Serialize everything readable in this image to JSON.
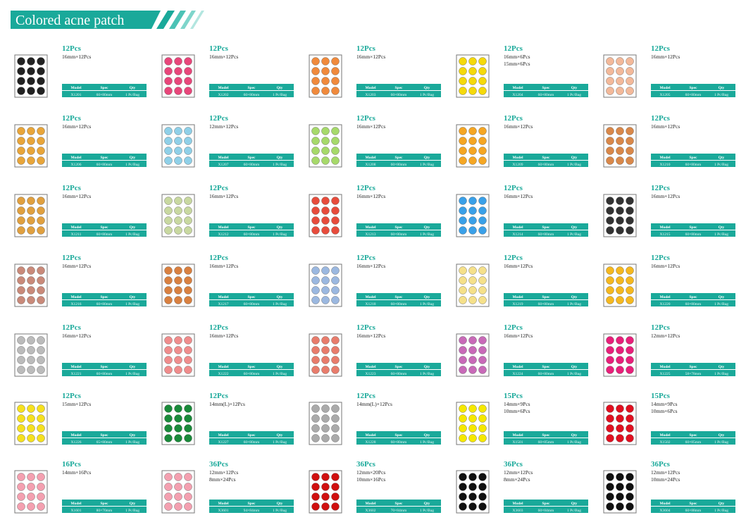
{
  "header": {
    "title": "Colored acne patch"
  },
  "table_header": [
    "Model",
    "Spec",
    "Qty"
  ],
  "products": [
    {
      "count": "12Pcs",
      "sizes": [
        "16mm×12Pcs"
      ],
      "model": "X1201",
      "spec": "60×80mm",
      "qty": "1 Pc/Bag"
    },
    {
      "count": "12Pcs",
      "sizes": [
        "16mm×12Pcs"
      ],
      "model": "X1202",
      "spec": "60×80mm",
      "qty": "1 Pc/Bag"
    },
    {
      "count": "12Pcs",
      "sizes": [
        "16mm×12Pcs"
      ],
      "model": "X1203",
      "spec": "60×80mm",
      "qty": "1 Pc/Bag"
    },
    {
      "count": "12Pcs",
      "sizes": [
        "16mm×6Pcs",
        "15mm×6Pcs"
      ],
      "model": "X1204",
      "spec": "60×80mm",
      "qty": "1 Pc/Bag"
    },
    {
      "count": "12Pcs",
      "sizes": [
        "16mm×12Pcs"
      ],
      "model": "X1205",
      "spec": "60×80mm",
      "qty": "1 Pc/Bag"
    },
    {
      "count": "12Pcs",
      "sizes": [
        "16mm×12Pcs"
      ],
      "model": "X1206",
      "spec": "60×80mm",
      "qty": "1 Pc/Bag"
    },
    {
      "count": "12Pcs",
      "sizes": [
        "12mm×12Pcs"
      ],
      "model": "X1207",
      "spec": "60×80mm",
      "qty": "1 Pc/Bag"
    },
    {
      "count": "12Pcs",
      "sizes": [
        "16mm×12Pcs"
      ],
      "model": "X1208",
      "spec": "60×80mm",
      "qty": "1 Pc/Bag"
    },
    {
      "count": "12Pcs",
      "sizes": [
        "16mm×12Pcs"
      ],
      "model": "X1209",
      "spec": "60×80mm",
      "qty": "1 Pc/Bag"
    },
    {
      "count": "12Pcs",
      "sizes": [
        "16mm×12Pcs"
      ],
      "model": "X1210",
      "spec": "60×80mm",
      "qty": "1 Pc/Bag"
    },
    {
      "count": "12Pcs",
      "sizes": [
        "16mm×12Pcs"
      ],
      "model": "X1211",
      "spec": "60×80mm",
      "qty": "1 Pc/Bag"
    },
    {
      "count": "12Pcs",
      "sizes": [
        "16mm×12Pcs"
      ],
      "model": "X1212",
      "spec": "60×80mm",
      "qty": "1 Pc/Bag"
    },
    {
      "count": "12Pcs",
      "sizes": [
        "16mm×12Pcs"
      ],
      "model": "X1213",
      "spec": "60×80mm",
      "qty": "1 Pc/Bag"
    },
    {
      "count": "12Pcs",
      "sizes": [
        "16mm×12Pcs"
      ],
      "model": "X1214",
      "spec": "60×80mm",
      "qty": "1 Pc/Bag"
    },
    {
      "count": "12Pcs",
      "sizes": [
        "16mm×12Pcs"
      ],
      "model": "X1215",
      "spec": "60×80mm",
      "qty": "1 Pc/Bag"
    },
    {
      "count": "12Pcs",
      "sizes": [
        "16mm×12Pcs"
      ],
      "model": "X1216",
      "spec": "60×80mm",
      "qty": "1 Pc/Bag"
    },
    {
      "count": "12Pcs",
      "sizes": [
        "16mm×12Pcs"
      ],
      "model": "X1217",
      "spec": "60×80mm",
      "qty": "1 Pc/Bag"
    },
    {
      "count": "12Pcs",
      "sizes": [
        "16mm×12Pcs"
      ],
      "model": "X1218",
      "spec": "60×80mm",
      "qty": "1 Pc/Bag"
    },
    {
      "count": "12Pcs",
      "sizes": [
        "16mm×12Pcs"
      ],
      "model": "X1219",
      "spec": "60×80mm",
      "qty": "1 Pc/Bag"
    },
    {
      "count": "12Pcs",
      "sizes": [
        "16mm×12Pcs"
      ],
      "model": "X1220",
      "spec": "60×80mm",
      "qty": "1 Pc/Bag"
    },
    {
      "count": "12Pcs",
      "sizes": [
        "16mm×12Pcs"
      ],
      "model": "X1221",
      "spec": "60×80mm",
      "qty": "1 Pc/Bag"
    },
    {
      "count": "12Pcs",
      "sizes": [
        "16mm×12Pcs"
      ],
      "model": "X1222",
      "spec": "60×80mm",
      "qty": "1 Pc/Bag"
    },
    {
      "count": "12Pcs",
      "sizes": [
        "16mm×12Pcs"
      ],
      "model": "X1223",
      "spec": "60×80mm",
      "qty": "1 Pc/Bag"
    },
    {
      "count": "12Pcs",
      "sizes": [
        "16mm×12Pcs"
      ],
      "model": "X1224",
      "spec": "60×80mm",
      "qty": "1 Pc/Bag"
    },
    {
      "count": "12Pcs",
      "sizes": [
        "12mm×12Pcs"
      ],
      "model": "X1225",
      "spec": "58×78mm",
      "qty": "1 Pc/Bag"
    },
    {
      "count": "12Pcs",
      "sizes": [
        "15mm×12Pcs"
      ],
      "model": "X1226",
      "spec": "65×80mm",
      "qty": "1 Pc/Bag"
    },
    {
      "count": "12Pcs",
      "sizes": [
        "14mm(L)×12Pcs"
      ],
      "model": "X1227",
      "spec": "60×80mm",
      "qty": "1 Pc/Bag"
    },
    {
      "count": "12Pcs",
      "sizes": [
        "14mm(L)×12Pcs"
      ],
      "model": "X1228",
      "spec": "60×80mm",
      "qty": "1 Pc/Bag"
    },
    {
      "count": "15Pcs",
      "sizes": [
        "14mm×9Pcs",
        "10mm×6Pcs"
      ],
      "model": "X1501",
      "spec": "60×85mm",
      "qty": "1 Pc/Bag"
    },
    {
      "count": "15Pcs",
      "sizes": [
        "14mm×9Pcs",
        "10mm×6Pcs"
      ],
      "model": "X1502",
      "spec": "60×85mm",
      "qty": "1 Pc/Bag"
    },
    {
      "count": "16Pcs",
      "sizes": [
        "14mm×16Pcs"
      ],
      "model": "X1601",
      "spec": "80×70mm",
      "qty": "1 Pc/Bag"
    },
    {
      "count": "36Pcs",
      "sizes": [
        "12mm×12Pcs",
        "8mm×24Pcs"
      ],
      "model": "X3601",
      "spec": "94×84mm",
      "qty": "1 Pc/Bag"
    },
    {
      "count": "36Pcs",
      "sizes": [
        "12mm×20Pcs",
        "10mm×16Pcs"
      ],
      "model": "X3602",
      "spec": "70×84mm",
      "qty": "1 Pc/Bag"
    },
    {
      "count": "36Pcs",
      "sizes": [
        "12mm×12Pcs",
        "8mm×24Pcs"
      ],
      "model": "X3603",
      "spec": "60×84mm",
      "qty": "1 Pc/Bag"
    },
    {
      "count": "36Pcs",
      "sizes": [
        "12mm×12Pcs",
        "10mm×24Pcs"
      ],
      "model": "X3604",
      "spec": "60×88mm",
      "qty": "1 Pc/Bag"
    }
  ]
}
